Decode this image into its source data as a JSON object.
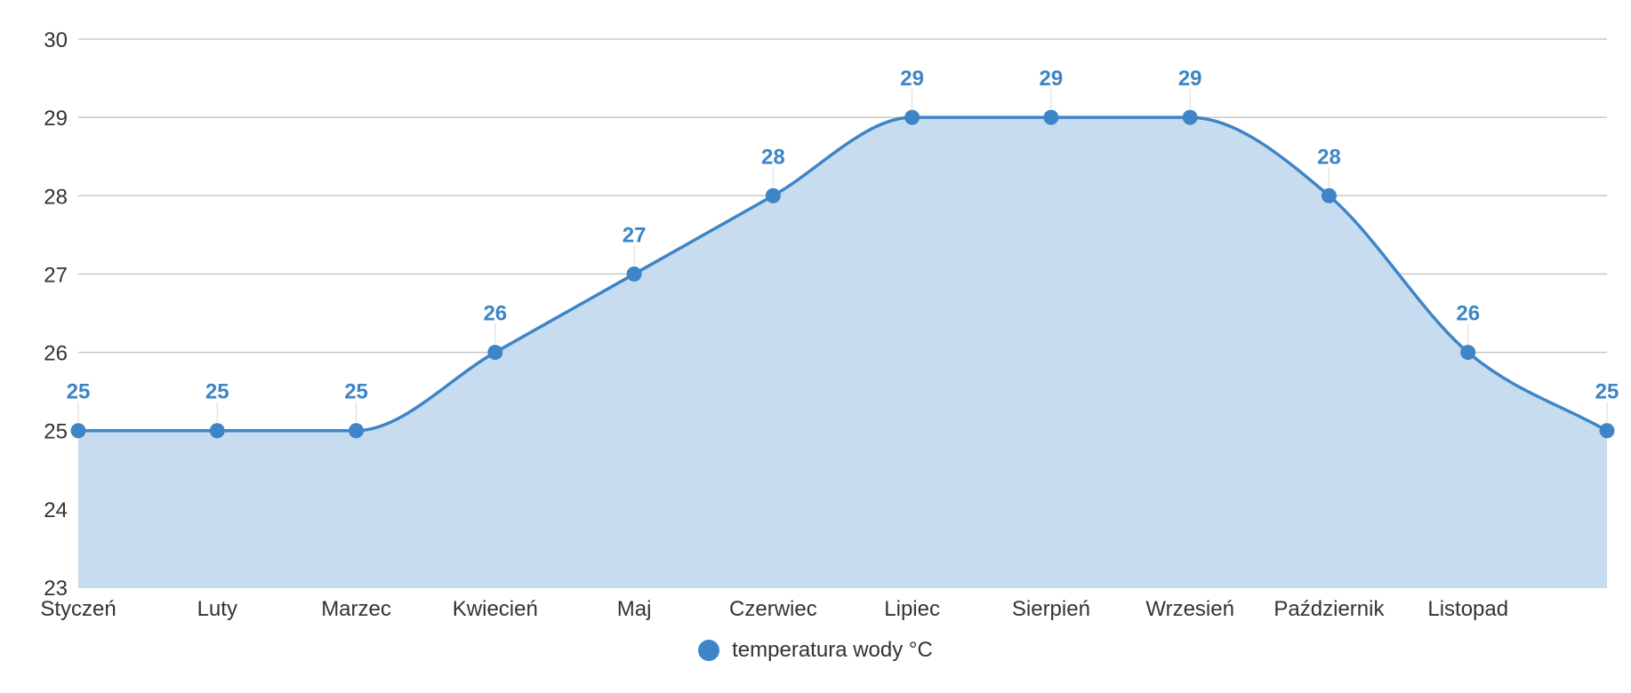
{
  "colors": {
    "series": "#3d85c6",
    "fill": "#c5daef",
    "grid": "#c8c8c8",
    "text": "#333333"
  },
  "chart_data": {
    "type": "area",
    "title": "",
    "xlabel": "",
    "ylabel": "",
    "categories": [
      "Styczeń",
      "Luty",
      "Marzec",
      "Kwiecień",
      "Maj",
      "Czerwiec",
      "Lipiec",
      "Sierpień",
      "Wrzesień",
      "Październik",
      "Listopad",
      ""
    ],
    "series": [
      {
        "name": "temperatura wody °C",
        "values": [
          25,
          25,
          25,
          26,
          27,
          28,
          29,
          29,
          29,
          28,
          26,
          25
        ]
      }
    ],
    "ylim": [
      23,
      30
    ],
    "yticks": [
      23,
      24,
      25,
      26,
      27,
      28,
      29,
      30
    ],
    "grid": true,
    "data_labels": true,
    "legend_position": "bottom"
  }
}
